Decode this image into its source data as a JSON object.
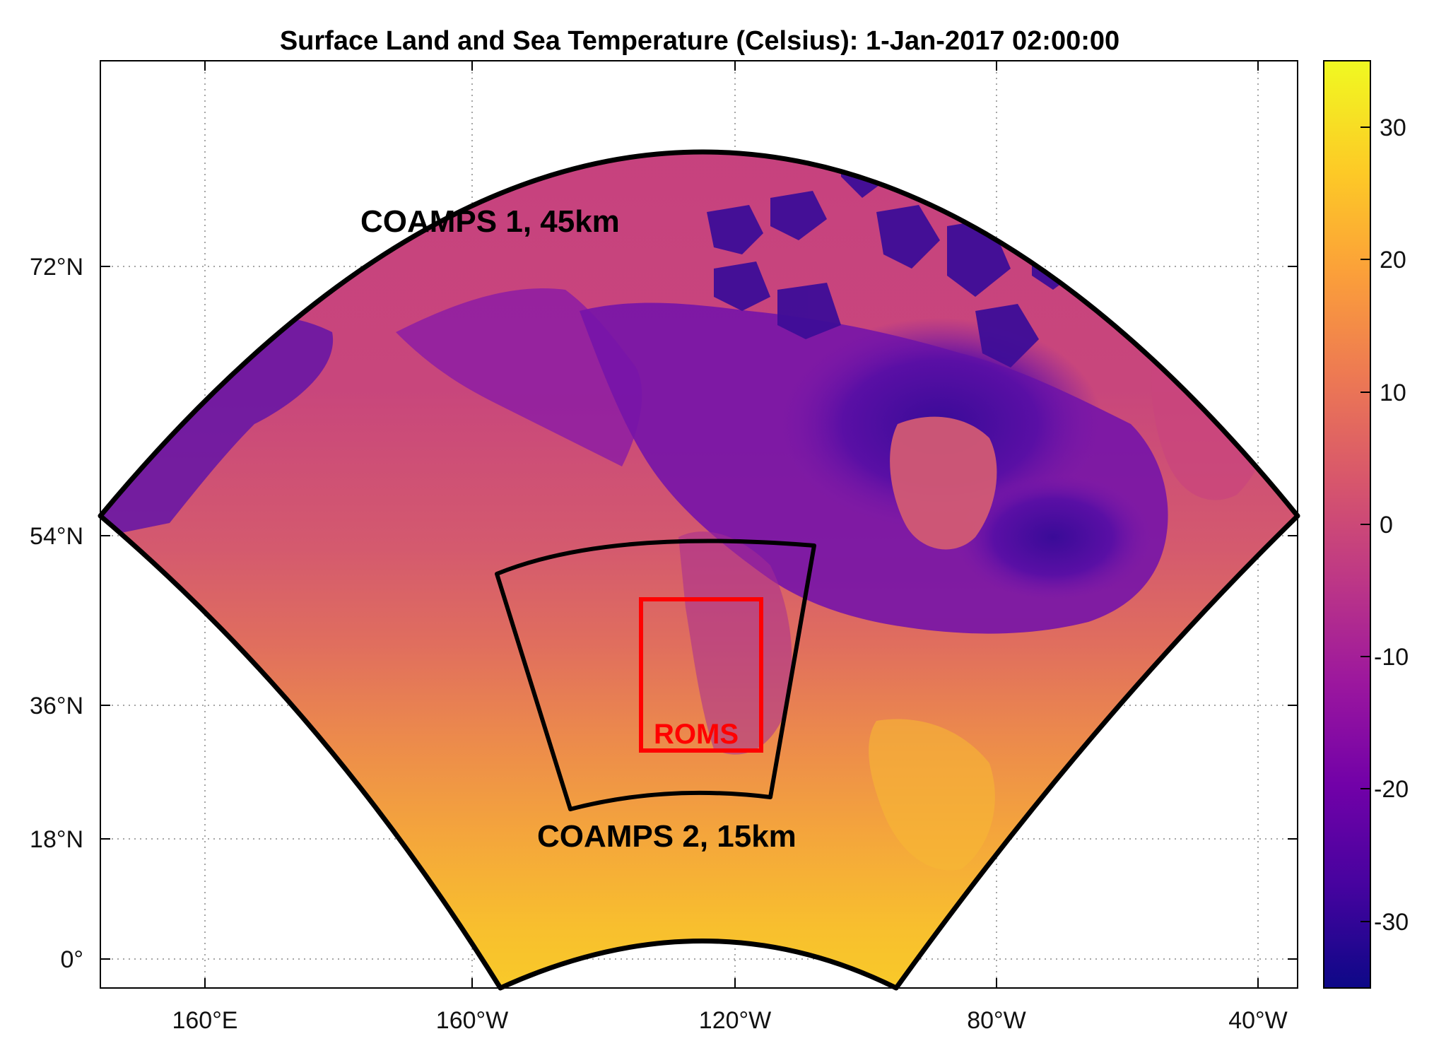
{
  "title": "Surface Land and Sea Temperature (Celsius): 1-Jan-2017 02:00:00",
  "labels": {
    "coamps1": "COAMPS 1, 45km",
    "coamps2": "COAMPS 2, 15km",
    "roms": "ROMS"
  },
  "axes": {
    "lon_ticks": [
      "160°E",
      "160°W",
      "120°W",
      "80°W",
      "40°W"
    ],
    "lat_ticks": [
      "72°N",
      "54°N",
      "36°N",
      "18°N",
      "0°"
    ],
    "grid": true
  },
  "colorbar": {
    "colormap": "plasma",
    "ticks": [
      "30",
      "20",
      "10",
      "0",
      "-10",
      "-20",
      "-30"
    ],
    "range": [
      -35,
      35
    ],
    "colors": [
      "#0d0887",
      "#46039f",
      "#7201a8",
      "#9c179e",
      "#bd3786",
      "#d8576b",
      "#ed7953",
      "#fb9f3a",
      "#fdca26",
      "#f0f921"
    ]
  },
  "colors": {
    "domain_outline": "#000000",
    "roms_box": "#ff0000",
    "ocean_cold": "#c7427e",
    "land_cold": "#6a11a8",
    "deep_cold": "#3b0a9a",
    "warm_ocean": "#f2a03a",
    "tropical": "#f8c62a"
  }
}
